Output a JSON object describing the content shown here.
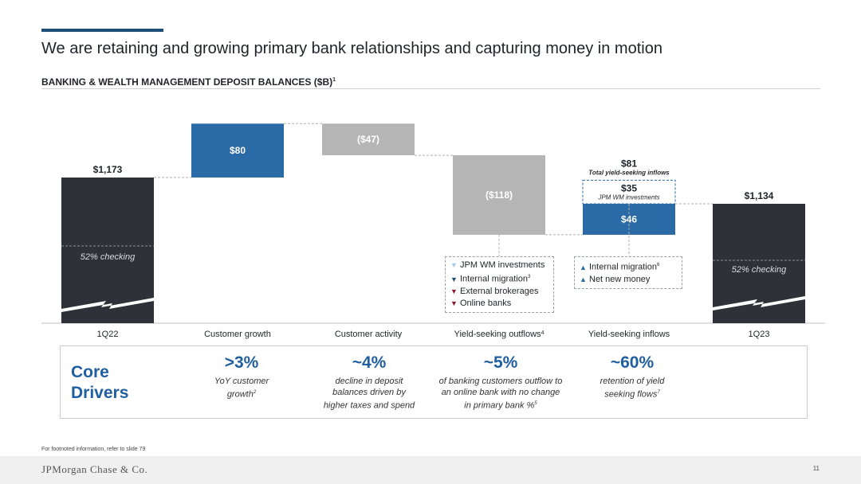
{
  "header": {
    "title": "We are retaining and growing primary bank relationships and capturing money in motion",
    "subtitle": "BANKING & WEALTH MANAGEMENT DEPOSIT BALANCES ($B)",
    "subtitle_footnote": "1"
  },
  "chart_data": {
    "type": "waterfall",
    "unit": "$B",
    "categories": [
      "1Q22",
      "Customer growth",
      "Customer activity",
      "Yield-seeking outflows",
      "Yield-seeking inflows",
      "1Q23"
    ],
    "category_footnotes": [
      "",
      "",
      "",
      "4",
      "",
      ""
    ],
    "steps": [
      {
        "category": "1Q22",
        "kind": "total",
        "value": 1173,
        "label": "$1,173",
        "note": "52% checking"
      },
      {
        "category": "Customer growth",
        "kind": "increase",
        "value": 80,
        "label": "$80"
      },
      {
        "category": "Customer activity",
        "kind": "decrease",
        "value": -47,
        "label": "($47)"
      },
      {
        "category": "Yield-seeking outflows",
        "kind": "decrease",
        "value": -118,
        "label": "($118)"
      },
      {
        "category": "Yield-seeking inflows",
        "kind": "increase",
        "value": 46,
        "label": "$46",
        "potential_value": 35,
        "potential_label": "$35",
        "potential_note": "JPM WM investments",
        "total_label": "$81",
        "total_note": "Total yield-seeking inflows"
      },
      {
        "category": "1Q23",
        "kind": "total",
        "value": 1134,
        "label": "$1,134",
        "note": "52% checking"
      }
    ],
    "colors": {
      "total": "#2e3238",
      "increase": "#2a6aa6",
      "decrease": "#b5b5b5",
      "connector": "#b0b0b0",
      "arrow_up": "#2a6aa6",
      "arrow_down_dark": "#1f4e79",
      "arrow_down_red": "#8b1a2b",
      "arrow_down_light": "#a8c8e8"
    }
  },
  "legends": {
    "outflows": [
      {
        "icon": "triangle-down-light-icon",
        "glyph": "▼",
        "color": "#a8c8e8",
        "text": "JPM WM investments",
        "sup": ""
      },
      {
        "icon": "triangle-down-blue-icon",
        "glyph": "▼",
        "color": "#1f4e79",
        "text": "Internal migration",
        "sup": "3"
      },
      {
        "icon": "triangle-down-red-icon",
        "glyph": "▼",
        "color": "#8b1a2b",
        "text": "External brokerages",
        "sup": ""
      },
      {
        "icon": "triangle-down-red-icon",
        "glyph": "▼",
        "color": "#8b1a2b",
        "text": "Online banks",
        "sup": ""
      }
    ],
    "inflows": [
      {
        "icon": "triangle-up-blue-icon",
        "glyph": "▲",
        "color": "#2a6aa6",
        "text": "Internal migration",
        "sup": "6"
      },
      {
        "icon": "triangle-up-blue-icon",
        "glyph": "▲",
        "color": "#2a6aa6",
        "text": "Net new money",
        "sup": ""
      }
    ]
  },
  "drivers": {
    "title_line1": "Core",
    "title_line2": "Drivers",
    "items": [
      {
        "big": ">3%",
        "desc": "YoY customer growth",
        "sup": "2"
      },
      {
        "big": "~4%",
        "desc": "decline in deposit balances driven by higher taxes and spend",
        "sup": ""
      },
      {
        "big": "~5%",
        "desc": "of banking customers outflow to an online bank with no change in primary bank %",
        "sup": "5"
      },
      {
        "big": "~60%",
        "desc": "retention of yield seeking flows",
        "sup": "7"
      }
    ]
  },
  "footer": {
    "footnote": "For footnoted information, refer to slide 79",
    "logo": "JPMorgan Chase & Co.",
    "page": "11"
  }
}
